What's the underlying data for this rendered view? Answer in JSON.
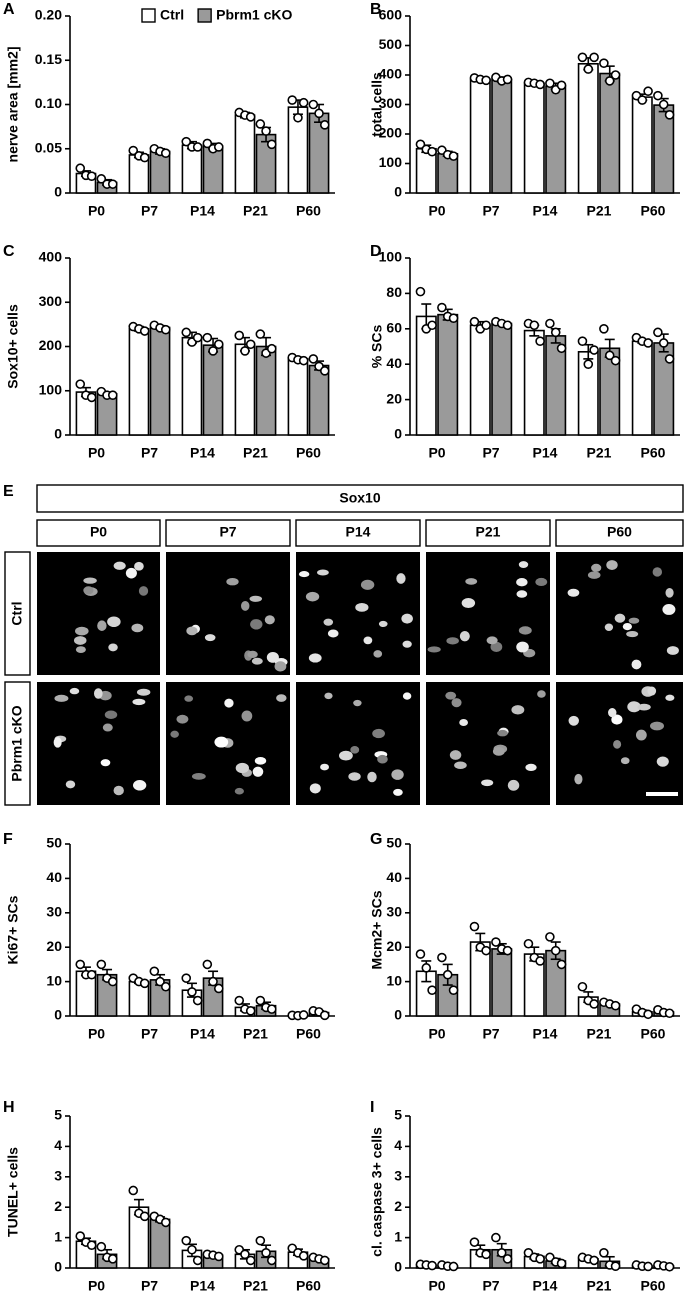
{
  "chart_data": [
    {
      "type": "bar",
      "panel": "A",
      "ylabel": "nerve area [mm2]",
      "categories": [
        "P0",
        "P7",
        "P14",
        "P21",
        "P60"
      ],
      "ylim": [
        0,
        0.2
      ],
      "yticks": [
        0,
        0.05,
        {
          "value": 0.1,
          "label": "0.10"
        },
        0.15,
        {
          "value": 0.2,
          "label": "0.20"
        }
      ],
      "series": [
        {
          "name": "Ctrl",
          "color": "#ffffff",
          "values": [
            0.022,
            0.043,
            0.054,
            0.088,
            0.097
          ],
          "errors": [
            0.003,
            0.003,
            0.004,
            0.003,
            0.008
          ],
          "points": [
            [
              0.028,
              0.02,
              0.019
            ],
            [
              0.048,
              0.042,
              0.04
            ],
            [
              0.058,
              0.052,
              0.052
            ],
            [
              0.091,
              0.088,
              0.086
            ],
            [
              0.105,
              0.085,
              0.102
            ]
          ]
        },
        {
          "name": "Pbrm1 cKO",
          "color": "#9a9a9a",
          "values": [
            0.012,
            0.047,
            0.053,
            0.066,
            0.09
          ],
          "errors": [
            0.003,
            0.003,
            0.003,
            0.008,
            0.01
          ],
          "points": [
            [
              0.016,
              0.01,
              0.01
            ],
            [
              0.05,
              0.047,
              0.045
            ],
            [
              0.056,
              0.05,
              0.052
            ],
            [
              0.078,
              0.07,
              0.055
            ],
            [
              0.1,
              0.09,
              0.077
            ]
          ]
        }
      ]
    },
    {
      "type": "bar",
      "panel": "B",
      "ylabel": "total cells",
      "categories": [
        "P0",
        "P7",
        "P14",
        "P21",
        "P60"
      ],
      "ylim": [
        0,
        600
      ],
      "yticks": [
        0,
        100,
        200,
        300,
        400,
        500,
        600
      ],
      "series": [
        {
          "color": "#ffffff",
          "values": [
            150,
            385,
            372,
            438,
            325
          ],
          "errors": [
            12,
            5,
            5,
            20,
            10
          ],
          "points": [
            [
              165,
              148,
              140
            ],
            [
              390,
              385,
              382
            ],
            [
              375,
              372,
              368
            ],
            [
              460,
              420,
              460
            ],
            [
              330,
              315,
              345
            ]
          ]
        },
        {
          "color": "#9a9a9a",
          "values": [
            133,
            385,
            362,
            405,
            298
          ],
          "errors": [
            8,
            8,
            10,
            25,
            22
          ],
          "points": [
            [
              145,
              130,
              125
            ],
            [
              392,
              380,
              385
            ],
            [
              372,
              350,
              365
            ],
            [
              440,
              380,
              400
            ],
            [
              330,
              300,
              265
            ]
          ]
        }
      ]
    },
    {
      "type": "bar",
      "panel": "C",
      "ylabel": "Sox10+ cells",
      "categories": [
        "P0",
        "P7",
        "P14",
        "P21",
        "P60"
      ],
      "ylim": [
        0,
        400
      ],
      "yticks": [
        0,
        100,
        200,
        300,
        400
      ],
      "series": [
        {
          "color": "#ffffff",
          "values": [
            97,
            240,
            220,
            205,
            172
          ],
          "errors": [
            10,
            5,
            12,
            15,
            4
          ],
          "points": [
            [
              115,
              90,
              85
            ],
            [
              245,
              240,
              235
            ],
            [
              232,
              210,
              220
            ],
            [
              225,
              190,
              205
            ],
            [
              175,
              170,
              168
            ]
          ]
        },
        {
          "color": "#9a9a9a",
          "values": [
            93,
            243,
            203,
            200,
            157
          ],
          "errors": [
            4,
            4,
            15,
            20,
            10
          ],
          "points": [
            [
              98,
              90,
              90
            ],
            [
              248,
              242,
              238
            ],
            [
              220,
              190,
              205
            ],
            [
              228,
              185,
              195
            ],
            [
              172,
              155,
              145
            ]
          ]
        }
      ]
    },
    {
      "type": "bar",
      "panel": "D",
      "ylabel": "% SCs",
      "categories": [
        "P0",
        "P7",
        "P14",
        "P21",
        "P60"
      ],
      "ylim": [
        0,
        100
      ],
      "yticks": [
        0,
        20,
        40,
        60,
        80,
        100
      ],
      "series": [
        {
          "color": "#ffffff",
          "values": [
            67,
            62,
            59,
            47,
            53
          ],
          "errors": [
            7,
            2,
            3,
            4,
            1
          ],
          "points": [
            [
              81,
              60,
              62
            ],
            [
              64,
              60,
              62
            ],
            [
              63,
              62,
              53
            ],
            [
              53,
              40,
              48
            ],
            [
              55,
              53,
              52
            ]
          ]
        },
        {
          "color": "#9a9a9a",
          "values": [
            68,
            63,
            56,
            49,
            52
          ],
          "errors": [
            3,
            1,
            4,
            5,
            5
          ],
          "points": [
            [
              72,
              67,
              66
            ],
            [
              64,
              63,
              62
            ],
            [
              63,
              58,
              49
            ],
            [
              60,
              45,
              42
            ],
            [
              58,
              52,
              43
            ]
          ]
        }
      ]
    },
    {
      "type": "bar",
      "panel": "F",
      "ylabel": "Ki67+ SCs",
      "categories": [
        "P0",
        "P7",
        "P14",
        "P21",
        "P60"
      ],
      "ylim": [
        0,
        50
      ],
      "yticks": [
        0,
        10,
        20,
        30,
        40,
        50
      ],
      "series": [
        {
          "color": "#ffffff",
          "values": [
            13,
            10,
            7.5,
            2.5,
            0.2
          ],
          "errors": [
            1.2,
            0.5,
            2,
            1,
            0.2
          ],
          "points": [
            [
              15,
              12,
              12
            ],
            [
              11,
              10,
              9.5
            ],
            [
              11,
              7,
              4.5
            ],
            [
              4.5,
              2,
              1.5
            ],
            [
              0.2,
              0.1,
              0.3
            ]
          ]
        },
        {
          "color": "#9a9a9a",
          "values": [
            12,
            10.5,
            11,
            3,
            1
          ],
          "errors": [
            1.5,
            1.5,
            2,
            1,
            0.5
          ],
          "points": [
            [
              15,
              11,
              10
            ],
            [
              13,
              10,
              8.5
            ],
            [
              15,
              10,
              8
            ],
            [
              4.5,
              2.5,
              2
            ],
            [
              1.5,
              1.2,
              0.2
            ]
          ]
        }
      ]
    },
    {
      "type": "bar",
      "panel": "G",
      "ylabel": "Mcm2+ SCs",
      "categories": [
        "P0",
        "P7",
        "P14",
        "P21",
        "P60"
      ],
      "ylim": [
        0,
        50
      ],
      "yticks": [
        0,
        10,
        20,
        30,
        40,
        50
      ],
      "series": [
        {
          "color": "#ffffff",
          "values": [
            13,
            21.5,
            18,
            5.5,
            1.2
          ],
          "errors": [
            3,
            2.5,
            2,
            1.5,
            0.5
          ],
          "points": [
            [
              18,
              14,
              7.5
            ],
            [
              26,
              20,
              19
            ],
            [
              21,
              17,
              16
            ],
            [
              8.5,
              4.5,
              3.5
            ],
            [
              2,
              1,
              0.5
            ]
          ]
        },
        {
          "color": "#9a9a9a",
          "values": [
            12,
            19.5,
            19,
            3.5,
            1.2
          ],
          "errors": [
            3,
            1.5,
            2.5,
            0.5,
            0.3
          ],
          "points": [
            [
              17,
              12,
              7.5
            ],
            [
              21.5,
              19.5,
              19
            ],
            [
              23,
              19,
              15
            ],
            [
              4,
              3.5,
              3
            ],
            [
              1.8,
              1,
              0.8
            ]
          ]
        }
      ]
    },
    {
      "type": "bar",
      "panel": "H",
      "ylabel": "TUNEL+ cells",
      "categories": [
        "P0",
        "P7",
        "P14",
        "P21",
        "P60"
      ],
      "ylim": [
        0,
        5
      ],
      "yticks": [
        0,
        1,
        2,
        3,
        4,
        5
      ],
      "series": [
        {
          "color": "#ffffff",
          "values": [
            0.88,
            2.0,
            0.58,
            0.45,
            0.52
          ],
          "errors": [
            0.1,
            0.25,
            0.2,
            0.15,
            0.1
          ],
          "points": [
            [
              1.05,
              0.85,
              0.75
            ],
            [
              2.55,
              1.8,
              1.7
            ],
            [
              0.9,
              0.6,
              0.25
            ],
            [
              0.6,
              0.45,
              0.25
            ],
            [
              0.65,
              0.5,
              0.4
            ]
          ]
        },
        {
          "color": "#9a9a9a",
          "values": [
            0.45,
            1.6,
            0.42,
            0.55,
            0.3
          ],
          "errors": [
            0.15,
            0.08,
            0.05,
            0.2,
            0.05
          ],
          "points": [
            [
              0.7,
              0.35,
              0.3
            ],
            [
              1.7,
              1.6,
              1.5
            ],
            [
              0.45,
              0.42,
              0.38
            ],
            [
              0.9,
              0.5,
              0.25
            ],
            [
              0.35,
              0.3,
              0.25
            ]
          ]
        }
      ]
    },
    {
      "type": "bar",
      "panel": "I",
      "ylabel": "cl. caspase 3+ cells",
      "categories": [
        "P0",
        "P7",
        "P14",
        "P21",
        "P60"
      ],
      "ylim": [
        0,
        5
      ],
      "yticks": [
        0,
        1,
        2,
        3,
        4,
        5
      ],
      "series": [
        {
          "color": "#ffffff",
          "values": [
            0.1,
            0.6,
            0.38,
            0.3,
            0.07
          ],
          "errors": [
            0.03,
            0.15,
            0.08,
            0.05,
            0.03
          ],
          "points": [
            [
              0.12,
              0.1,
              0.08
            ],
            [
              0.85,
              0.5,
              0.45
            ],
            [
              0.5,
              0.35,
              0.3
            ],
            [
              0.35,
              0.3,
              0.25
            ],
            [
              0.1,
              0.06,
              0.05
            ]
          ]
        },
        {
          "color": "#9a9a9a",
          "values": [
            0.07,
            0.6,
            0.23,
            0.22,
            0.07
          ],
          "errors": [
            0.03,
            0.2,
            0.08,
            0.15,
            0.03
          ],
          "points": [
            [
              0.1,
              0.06,
              0.05
            ],
            [
              1.0,
              0.5,
              0.3
            ],
            [
              0.35,
              0.2,
              0.15
            ],
            [
              0.5,
              0.1,
              0.06
            ],
            [
              0.1,
              0.07,
              0.04
            ]
          ]
        }
      ]
    }
  ],
  "image_panel": {
    "panel": "E",
    "title": "Sox10",
    "columns": [
      "P0",
      "P7",
      "P14",
      "P21",
      "P60"
    ],
    "rows": [
      "Ctrl",
      "Pbrm1 cKO"
    ]
  }
}
